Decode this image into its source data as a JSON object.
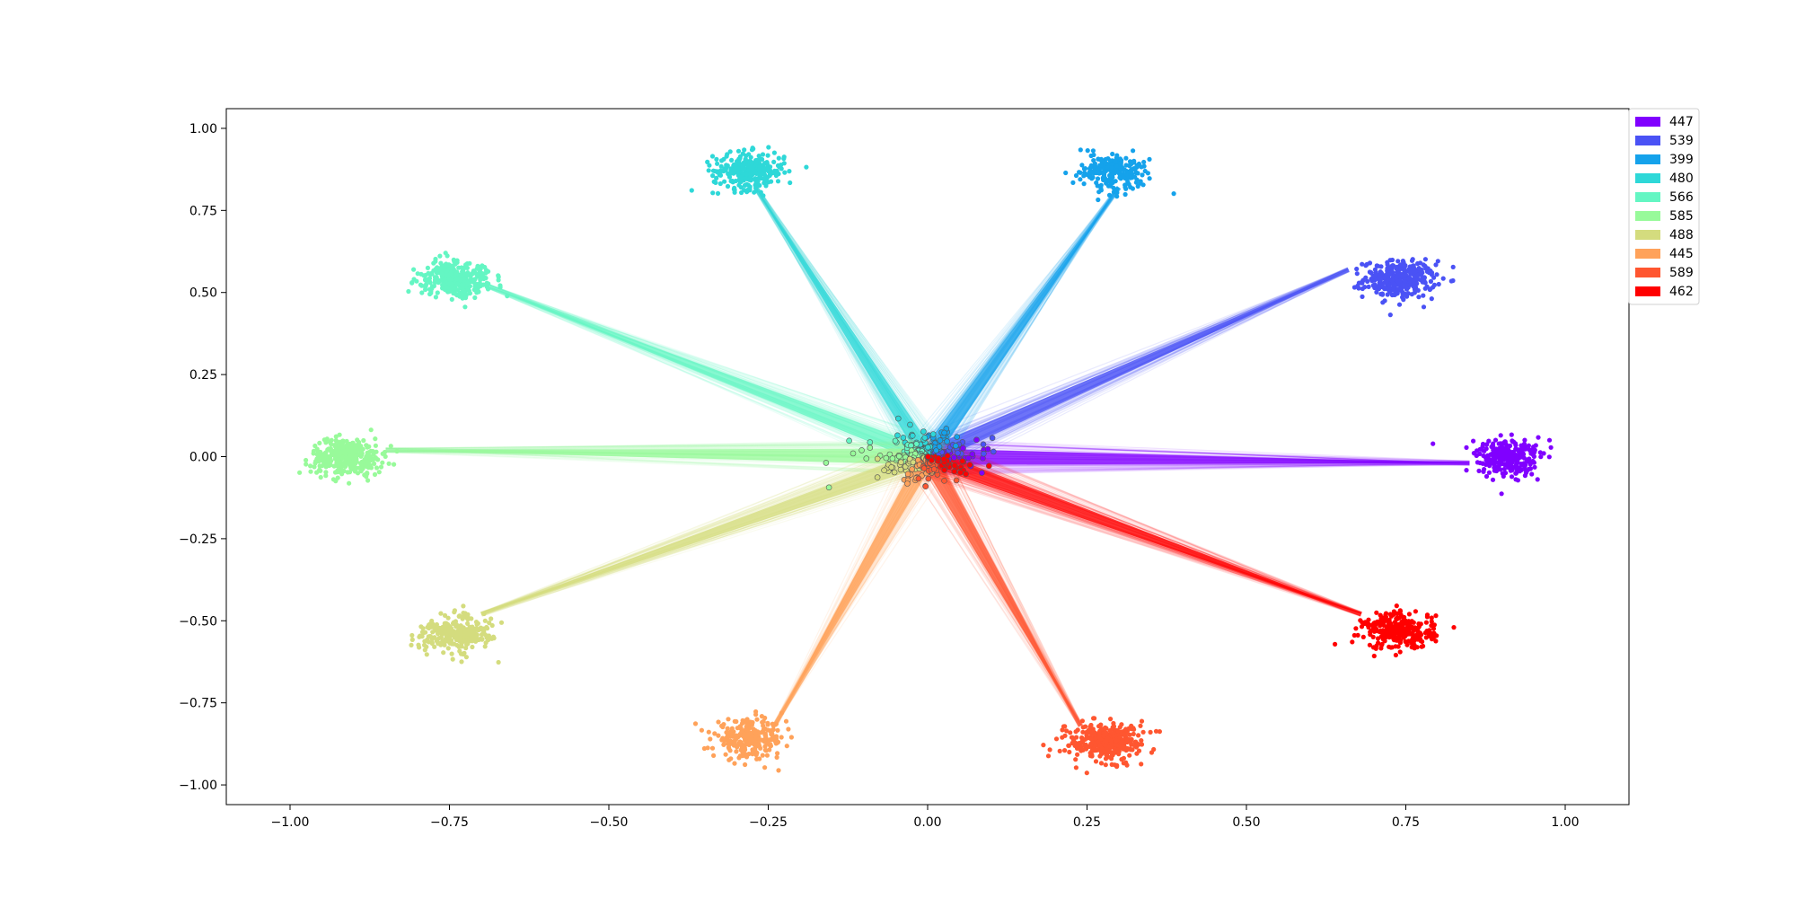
{
  "chart_data": {
    "type": "scatter",
    "title": "",
    "xlabel": "",
    "ylabel": "",
    "xlim": [
      -1.1,
      1.1
    ],
    "ylim": [
      -1.06,
      1.06
    ],
    "x_ticks": [
      -1.0,
      -0.75,
      -0.5,
      -0.25,
      0.0,
      0.25,
      0.5,
      0.75,
      1.0
    ],
    "x_tick_labels": [
      "−1.00",
      "−0.75",
      "−0.50",
      "−0.25",
      "0.00",
      "0.25",
      "0.50",
      "0.75",
      "1.00"
    ],
    "y_ticks": [
      1.0,
      0.75,
      0.5,
      0.25,
      0.0,
      -0.25,
      -0.5,
      -0.75,
      -1.0
    ],
    "y_tick_labels": [
      "1.00",
      "0.75",
      "0.50",
      "0.25",
      "0.00",
      "−0.25",
      "−0.50",
      "−0.75",
      "−1.00"
    ],
    "grid": false,
    "legend_position": "upper-right-outside",
    "origin_cluster": {
      "x": 0.0,
      "y": 0.0
    },
    "series": [
      {
        "name": "447",
        "color": "#8000ff",
        "center": [
          0.91,
          0.0
        ],
        "count": 447,
        "arrow_tip": [
          0.85,
          -0.02
        ]
      },
      {
        "name": "539",
        "color": "#4a52f5",
        "center": [
          0.74,
          0.54
        ],
        "count": 539,
        "arrow_tip": [
          0.66,
          0.57
        ]
      },
      {
        "name": "399",
        "color": "#15a2eb",
        "center": [
          0.29,
          0.87
        ],
        "count": 399,
        "arrow_tip": [
          0.3,
          0.82
        ]
      },
      {
        "name": "480",
        "color": "#2ed8d8",
        "center": [
          -0.28,
          0.87
        ],
        "count": 480,
        "arrow_tip": [
          -0.27,
          0.82
        ]
      },
      {
        "name": "566",
        "color": "#64f6c3",
        "center": [
          -0.74,
          0.54
        ],
        "count": 566,
        "arrow_tip": [
          -0.69,
          0.52
        ]
      },
      {
        "name": "585",
        "color": "#98fa9a",
        "center": [
          -0.91,
          0.0
        ],
        "count": 585,
        "arrow_tip": [
          -0.85,
          0.02
        ]
      },
      {
        "name": "488",
        "color": "#d4dc7e",
        "center": [
          -0.74,
          -0.54
        ],
        "count": 488,
        "arrow_tip": [
          -0.7,
          -0.48
        ]
      },
      {
        "name": "445",
        "color": "#ffa25a",
        "center": [
          -0.28,
          -0.86
        ],
        "count": 445,
        "arrow_tip": [
          -0.24,
          -0.82
        ]
      },
      {
        "name": "589",
        "color": "#ff5630",
        "center": [
          0.28,
          -0.87
        ],
        "count": 589,
        "arrow_tip": [
          0.24,
          -0.82
        ]
      },
      {
        "name": "462",
        "color": "#ff0000",
        "center": [
          0.74,
          -0.53
        ],
        "count": 462,
        "arrow_tip": [
          0.68,
          -0.48
        ]
      }
    ]
  }
}
